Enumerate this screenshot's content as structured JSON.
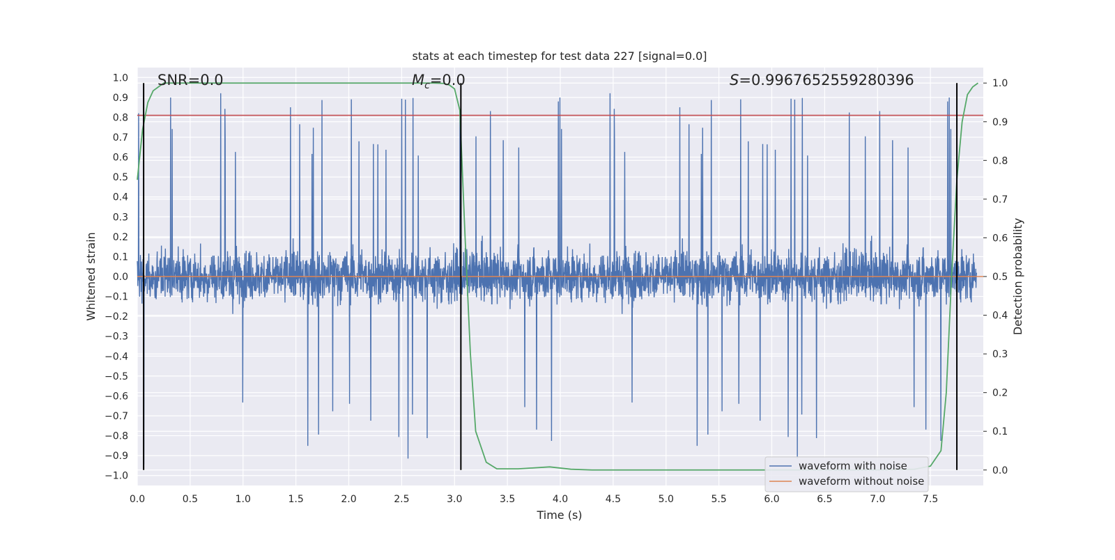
{
  "chart_data": {
    "type": "line",
    "title": "stats at each timestep for test data 227 [signal=0.0]",
    "xlabel": "Time (s)",
    "ylabel": "Whitened strain",
    "ylabel_right": "Detection probability",
    "xlim": [
      0.0,
      8.0
    ],
    "ylim": [
      -1.05,
      1.05
    ],
    "ylim_right": [
      -0.04,
      1.04
    ],
    "x_ticks": [
      "0.0",
      "0.5",
      "1.0",
      "1.5",
      "2.0",
      "2.5",
      "3.0",
      "3.5",
      "4.0",
      "4.5",
      "5.0",
      "5.5",
      "6.0",
      "6.5",
      "7.0",
      "7.5"
    ],
    "x_tick_values": [
      0.0,
      0.5,
      1.0,
      1.5,
      2.0,
      2.5,
      3.0,
      3.5,
      4.0,
      4.5,
      5.0,
      5.5,
      6.0,
      6.5,
      7.0,
      7.5
    ],
    "y_ticks": [
      "1.0",
      "0.9",
      "0.8",
      "0.7",
      "0.6",
      "0.5",
      "0.4",
      "0.3",
      "0.2",
      "0.1",
      "0.0",
      "−0.1",
      "−0.2",
      "−0.3",
      "−0.4",
      "−0.5",
      "−0.6",
      "−0.7",
      "−0.8",
      "−0.9",
      "−1.0"
    ],
    "y_tick_values": [
      1.0,
      0.9,
      0.8,
      0.7,
      0.6,
      0.5,
      0.4,
      0.3,
      0.2,
      0.1,
      0.0,
      -0.1,
      -0.2,
      -0.3,
      -0.4,
      -0.5,
      -0.6,
      -0.7,
      -0.8,
      -0.9,
      -1.0
    ],
    "y_ticks_right": [
      "1.0",
      "0.9",
      "0.8",
      "0.7",
      "0.6",
      "0.5",
      "0.4",
      "0.3",
      "0.2",
      "0.1",
      "0.0"
    ],
    "y_tick_values_right": [
      1.0,
      0.9,
      0.8,
      0.7,
      0.6,
      0.5,
      0.4,
      0.3,
      0.2,
      0.1,
      0.0
    ],
    "grid": true,
    "legend_position": "lower-right",
    "annotations": {
      "snr": "SNR=0.0",
      "mc_symbol": "M",
      "mc_sub": "c",
      "mc_value": "=0.0",
      "s_symbol": "S",
      "s_value": "=0.9967652559280396"
    },
    "series": [
      {
        "name": "waveform with noise",
        "color": "#4c72b0",
        "axis": "left",
        "description_range": [
          -1.0,
          1.0
        ]
      },
      {
        "name": "waveform without noise",
        "color": "#dd8452",
        "axis": "left",
        "x": [
          0.0,
          8.0
        ],
        "y": [
          0.0,
          0.0
        ]
      },
      {
        "name": "",
        "color": "#55a868",
        "axis": "right",
        "x": [
          0.0,
          0.05,
          0.1,
          0.15,
          0.2,
          0.25,
          0.3,
          0.4,
          0.5,
          1.0,
          1.5,
          2.0,
          2.5,
          2.8,
          2.9,
          2.95,
          3.0,
          3.05,
          3.1,
          3.15,
          3.2,
          3.3,
          3.4,
          3.6,
          3.9,
          4.1,
          4.3,
          5.0,
          6.0,
          7.0,
          7.35,
          7.5,
          7.6,
          7.65,
          7.7,
          7.75,
          7.8,
          7.85,
          7.9,
          7.95
        ],
        "y": [
          0.75,
          0.88,
          0.95,
          0.98,
          0.99,
          1.0,
          1.0,
          1.0,
          1.0,
          1.0,
          1.0,
          1.0,
          1.0,
          1.0,
          0.999,
          0.995,
          0.985,
          0.93,
          0.6,
          0.3,
          0.1,
          0.02,
          0.003,
          0.003,
          0.008,
          0.002,
          0.0,
          0.0,
          0.0,
          0.0,
          0.002,
          0.01,
          0.05,
          0.2,
          0.5,
          0.75,
          0.9,
          0.97,
          0.99,
          1.0
        ]
      },
      {
        "name": "",
        "color": "#c44e52",
        "axis": "left",
        "x": [
          0.0,
          8.0
        ],
        "y": [
          0.81,
          0.81
        ]
      }
    ],
    "vertical_lines": [
      0.06,
      3.06,
      7.75
    ]
  }
}
